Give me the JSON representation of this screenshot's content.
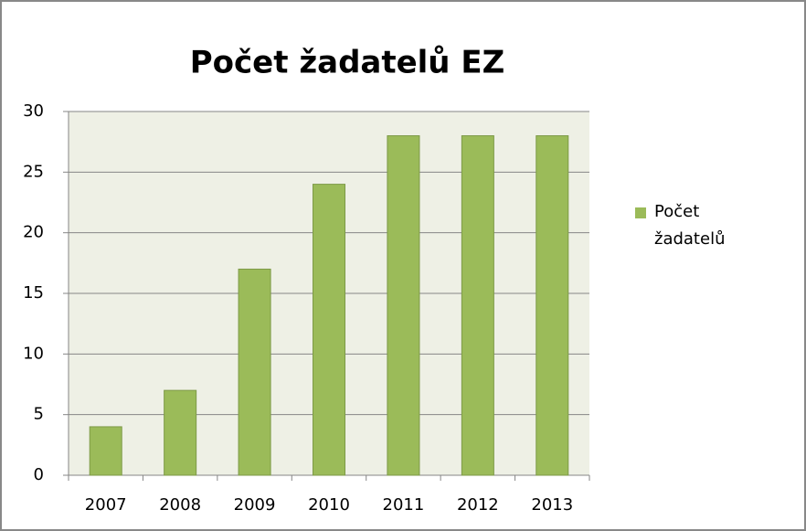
{
  "chart_data": {
    "type": "bar",
    "title": "Počet žadatelů EZ",
    "categories": [
      "2007",
      "2008",
      "2009",
      "2010",
      "2011",
      "2012",
      "2013"
    ],
    "series": [
      {
        "name": "Počet žadatelů",
        "color": "#9bbb59",
        "values": [
          4,
          7,
          17,
          24,
          28,
          28,
          28
        ]
      }
    ],
    "ylim": [
      0,
      30
    ],
    "yticks": [
      0,
      5,
      10,
      15,
      20,
      25,
      30
    ],
    "grid": true,
    "legend": "right"
  }
}
